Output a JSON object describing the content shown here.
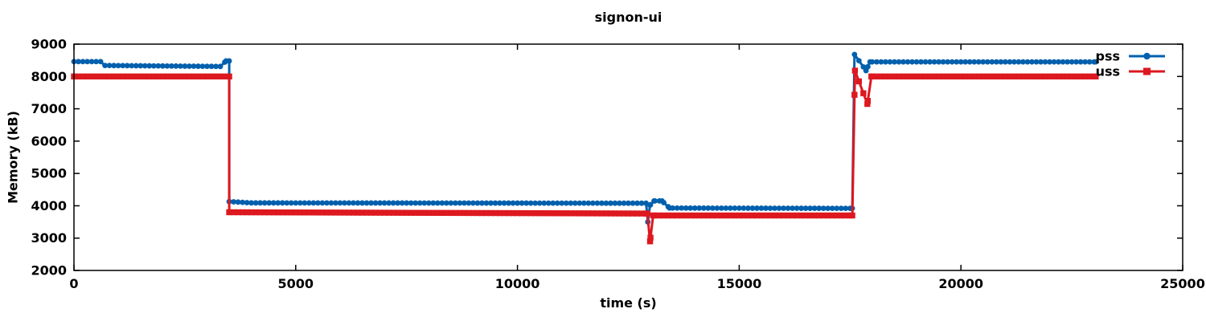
{
  "title": "signon-ui",
  "colors": {
    "axis": "#000000",
    "background": "#ffffff",
    "pss": "#0060ad",
    "uss": "#dd181f"
  },
  "chart_data": {
    "type": "line",
    "title": "signon-ui",
    "xlabel": "time (s)",
    "ylabel": "Memory (kB)",
    "xlim": [
      0,
      25000
    ],
    "ylim": [
      2000,
      9000
    ],
    "x_ticks": [
      0,
      5000,
      10000,
      15000,
      20000,
      25000
    ],
    "y_ticks": [
      2000,
      3000,
      4000,
      5000,
      6000,
      7000,
      8000,
      9000
    ],
    "grid": false,
    "legend_position": "top-right",
    "marker_interval_s": 100,
    "series": [
      {
        "name": "pss",
        "color": "#0060ad",
        "marker": "circle",
        "points": [
          [
            0,
            8460
          ],
          [
            600,
            8460
          ],
          [
            700,
            8340
          ],
          [
            3300,
            8310
          ],
          [
            3430,
            8480
          ],
          [
            3500,
            8480
          ],
          [
            3500,
            4130
          ],
          [
            4000,
            4090
          ],
          [
            12900,
            4080
          ],
          [
            12940,
            3500
          ],
          [
            12990,
            4020
          ],
          [
            13080,
            4150
          ],
          [
            13260,
            4150
          ],
          [
            13430,
            3930
          ],
          [
            17550,
            3920
          ],
          [
            17600,
            8680
          ],
          [
            17860,
            8180
          ],
          [
            17950,
            8450
          ],
          [
            23040,
            8450
          ]
        ]
      },
      {
        "name": "uss",
        "color": "#dd181f",
        "marker": "square",
        "points": [
          [
            0,
            8000
          ],
          [
            3500,
            8000
          ],
          [
            3500,
            3800
          ],
          [
            12930,
            3760
          ],
          [
            12990,
            2900
          ],
          [
            13060,
            3700
          ],
          [
            17550,
            3700
          ],
          [
            17610,
            8180
          ],
          [
            17890,
            7150
          ],
          [
            17980,
            8000
          ],
          [
            23040,
            8000
          ]
        ]
      }
    ]
  }
}
